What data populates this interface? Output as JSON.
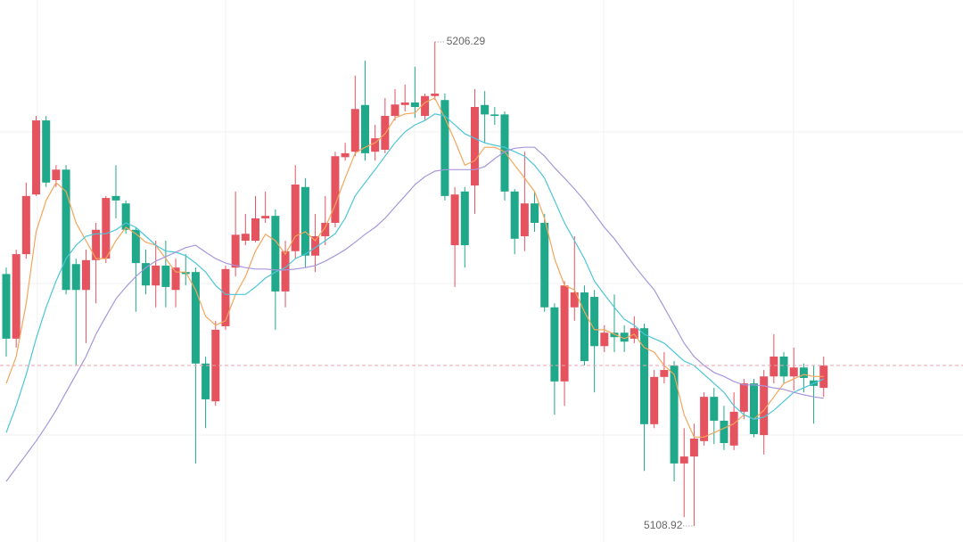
{
  "chart_data": {
    "type": "candlestick",
    "ylim": [
      5105.7,
      5214.72
    ],
    "up_color": "#e5535f",
    "down_color": "#1fa88a",
    "price_line": true,
    "price_line_color": "#e9a3ad",
    "open": [
      5159.6,
      5146.6,
      5163.6,
      5175.6,
      5190.5,
      5178.5,
      5180.6,
      5161.6,
      5156.4,
      5162.4,
      5162.7,
      5175.3,
      5173.8,
      5168.5,
      5161.8,
      5157.3,
      5161.3,
      5156.4,
      5160.0,
      5160.0,
      5141.6,
      5134.0,
      5149.1,
      5160.9,
      5166.3,
      5166.3,
      5170.8,
      5171.3,
      5156.1,
      5164.2,
      5177.1,
      5163.3,
      5167.2,
      5169.9,
      5183.1,
      5184.2,
      5193.6,
      5184.2,
      5184.6,
      5191.4,
      5193.6,
      5194.1,
      5191.4,
      5195.4,
      5194.6,
      5165.4,
      5176.2,
      5177.4,
      5193.6,
      5191.7,
      5191.7,
      5176.2,
      5167.2,
      5173.8,
      5169.9,
      5152.9,
      5138.0,
      5152.9,
      5155.9,
      5155.0,
      5145.1,
      5147.8,
      5147.8,
      5146.6,
      5148.7,
      5129.4,
      5138.9,
      5141.2,
      5121.5,
      5122.9,
      5126.0,
      5134.9,
      5130.1,
      5125.1,
      5131.9,
      5137.6,
      5127.2,
      5139.0,
      5143.0,
      5139.0,
      5140.8,
      5138.2,
      5136.7
    ],
    "high": [
      5160.9,
      5164.5,
      5178.0,
      5191.4,
      5191.4,
      5181.5,
      5181.5,
      5162.7,
      5164.5,
      5169.9,
      5175.3,
      5181.5,
      5174.4,
      5169.0,
      5164.5,
      5166.3,
      5166.3,
      5162.7,
      5163.6,
      5160.9,
      5143.0,
      5150.2,
      5161.3,
      5176.2,
      5171.7,
      5175.3,
      5176.2,
      5172.6,
      5166.3,
      5181.5,
      5178.9,
      5171.7,
      5175.3,
      5184.2,
      5186.0,
      5199.5,
      5202.5,
      5189.6,
      5195.0,
      5196.8,
      5197.7,
      5201.3,
      5195.9,
      5206.29,
      5195.9,
      5177.1,
      5177.1,
      5196.8,
      5196.4,
      5193.2,
      5192.3,
      5176.7,
      5184.2,
      5176.2,
      5171.7,
      5153.7,
      5158.2,
      5167.2,
      5157.3,
      5156.4,
      5149.3,
      5155.5,
      5149.3,
      5151.1,
      5149.6,
      5140.3,
      5143.9,
      5142.1,
      5128.6,
      5129.5,
      5135.8,
      5136.7,
      5133.1,
      5135.8,
      5138.5,
      5138.5,
      5140.3,
      5147.5,
      5143.9,
      5144.8,
      5141.6,
      5141.2,
      5143.0
    ],
    "low": [
      5143.0,
      5144.8,
      5162.7,
      5175.3,
      5177.1,
      5177.1,
      5155.5,
      5141.2,
      5145.7,
      5153.7,
      5161.8,
      5170.8,
      5167.7,
      5152.0,
      5155.5,
      5152.9,
      5152.9,
      5152.9,
      5157.3,
      5121.5,
      5128.6,
      5133.1,
      5148.4,
      5159.1,
      5165.4,
      5166.0,
      5169.9,
      5148.4,
      5152.9,
      5162.7,
      5160.9,
      5160.0,
      5165.4,
      5169.0,
      5182.4,
      5183.3,
      5182.4,
      5182.4,
      5183.9,
      5190.5,
      5192.3,
      5191.0,
      5190.5,
      5194.6,
      5174.4,
      5157.0,
      5160.9,
      5171.7,
      5186.0,
      5189.6,
      5174.4,
      5163.6,
      5164.2,
      5168.1,
      5152.0,
      5131.3,
      5133.1,
      5150.2,
      5141.2,
      5135.8,
      5143.9,
      5143.9,
      5143.9,
      5145.7,
      5120.0,
      5128.6,
      5137.6,
      5117.9,
      5110.7,
      5108.92,
      5125.1,
      5125.4,
      5124.2,
      5124.2,
      5130.4,
      5126.8,
      5123.3,
      5137.6,
      5137.6,
      5136.2,
      5135.8,
      5129.5,
      5134.9
    ],
    "close": [
      5146.6,
      5163.6,
      5175.3,
      5190.5,
      5178.0,
      5180.6,
      5156.4,
      5156.4,
      5162.4,
      5168.5,
      5174.9,
      5174.4,
      5168.5,
      5161.8,
      5157.3,
      5161.3,
      5157.0,
      5160.9,
      5159.6,
      5141.6,
      5134.4,
      5148.4,
      5160.6,
      5167.5,
      5167.7,
      5170.8,
      5171.3,
      5156.1,
      5164.2,
      5177.6,
      5163.3,
      5167.2,
      5169.9,
      5183.3,
      5183.9,
      5192.8,
      5183.9,
      5186.9,
      5191.4,
      5193.7,
      5194.1,
      5193.2,
      5195.4,
      5195.9,
      5175.3,
      5175.6,
      5165.4,
      5193.2,
      5191.7,
      5191.4,
      5176.2,
      5166.7,
      5173.8,
      5169.9,
      5152.9,
      5138.0,
      5157.3,
      5155.9,
      5142.1,
      5145.1,
      5147.8,
      5146.9,
      5146.0,
      5148.7,
      5129.4,
      5138.9,
      5140.3,
      5121.5,
      5122.9,
      5126.5,
      5134.9,
      5130.1,
      5125.6,
      5131.9,
      5137.6,
      5127.4,
      5139.0,
      5143.0,
      5139.0,
      5140.8,
      5138.7,
      5137.1,
      5141.2
    ],
    "ma_lines": [
      {
        "color": "#f3a65c",
        "values": [
          5137.6,
          5143.0,
          5153.7,
          5168.1,
          5174.4,
          5178.0,
          5176.2,
          5169.9,
          5166.3,
          5162.7,
          5162.7,
          5166.3,
          5169.0,
          5167.7,
          5166.0,
          5165.4,
          5162.7,
          5160.0,
          5160.0,
          5156.4,
          5151.1,
          5149.3,
          5150.2,
          5155.5,
          5159.1,
          5164.2,
          5167.6,
          5166.3,
          5163.6,
          5167.2,
          5168.1,
          5166.3,
          5169.0,
          5173.5,
          5178.9,
          5183.9,
          5185.1,
          5186.0,
          5187.8,
          5191.0,
          5191.8,
          5192.0,
          5194.1,
          5195.0,
          5191.0,
          5186.4,
          5181.5,
          5182.4,
          5185.1,
          5185.1,
          5184.2,
          5181.5,
          5178.9,
          5176.2,
          5170.8,
          5162.7,
          5157.3,
          5156.4,
          5152.0,
          5148.4,
          5148.4,
          5147.5,
          5146.6,
          5147.5,
          5144.8,
          5143.9,
          5141.2,
          5139.4,
          5131.3,
          5126.8,
          5126.8,
          5127.7,
          5128.6,
          5129.5,
          5131.3,
          5130.4,
          5132.2,
          5134.9,
          5137.6,
          5138.5,
          5139.4,
          5139.0,
          5139.0
        ]
      },
      {
        "color": "#4cc6d8",
        "values": [
          5127.7,
          5133.1,
          5139.4,
          5146.6,
          5152.9,
          5158.2,
          5162.7,
          5165.4,
          5167.2,
          5167.7,
          5167.7,
          5168.5,
          5169.9,
          5169.0,
          5167.2,
          5165.4,
          5164.2,
          5164.0,
          5163.3,
          5161.8,
          5160.0,
          5157.3,
          5155.5,
          5155.5,
          5155.5,
          5157.0,
          5158.8,
          5160.0,
          5160.9,
          5162.7,
          5163.6,
          5164.9,
          5166.3,
          5167.7,
          5170.8,
          5175.3,
          5178.0,
          5180.6,
          5183.3,
          5186.0,
          5188.2,
          5189.6,
          5190.5,
          5191.8,
          5191.4,
          5189.6,
          5187.8,
          5186.9,
          5186.0,
          5185.5,
          5185.1,
          5184.2,
          5183.3,
          5181.5,
          5178.9,
          5174.4,
          5169.9,
          5166.3,
          5162.7,
          5158.2,
          5155.5,
          5152.9,
          5150.5,
          5149.3,
          5147.5,
          5146.6,
          5145.7,
          5143.9,
          5142.1,
          5141.2,
          5139.4,
          5137.6,
          5135.8,
          5133.1,
          5131.3,
          5130.4,
          5130.8,
          5132.2,
          5134.0,
          5135.8,
          5136.7,
          5137.6,
          5138.5
        ]
      },
      {
        "color": "#a896dc",
        "values": [
          5117.9,
          5120.6,
          5123.3,
          5126.0,
          5129.0,
          5132.2,
          5135.8,
          5139.4,
          5143.0,
          5147.5,
          5151.1,
          5154.6,
          5157.0,
          5159.1,
          5160.9,
          5162.2,
          5163.1,
          5164.0,
          5164.9,
          5165.4,
          5164.0,
          5162.7,
          5161.8,
          5161.3,
          5160.9,
          5160.6,
          5160.6,
          5160.4,
          5160.4,
          5160.6,
          5160.9,
          5161.3,
          5162.2,
          5163.3,
          5164.5,
          5166.0,
          5167.6,
          5169.0,
          5170.8,
          5173.1,
          5175.3,
          5177.6,
          5179.2,
          5180.3,
          5180.6,
          5180.6,
          5180.6,
          5180.6,
          5181.2,
          5182.8,
          5184.2,
          5184.9,
          5185.1,
          5185.1,
          5183.3,
          5181.0,
          5178.9,
          5176.7,
          5174.4,
          5171.7,
          5169.0,
          5166.7,
          5164.0,
          5161.3,
          5158.8,
          5156.4,
          5152.9,
          5149.3,
          5145.7,
          5143.0,
          5141.2,
          5139.8,
          5139.0,
          5138.0,
          5137.3,
          5137.3,
          5137.1,
          5136.7,
          5136.4,
          5135.8,
          5135.3,
          5134.9,
          5134.6
        ]
      }
    ],
    "annotations": {
      "high_index": 43,
      "low_index": 69
    }
  }
}
